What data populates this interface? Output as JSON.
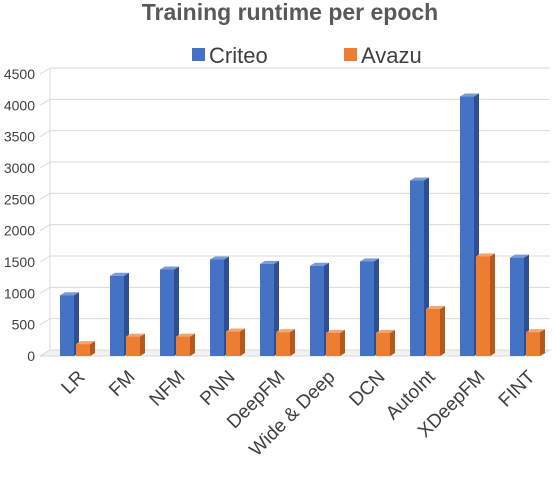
{
  "chart_data": {
    "type": "bar",
    "title": "Training runtime per epoch",
    "categories": [
      "LR",
      "FM",
      "NFM",
      "PNN",
      "DeepFM",
      "Wide & Deep",
      "DCN",
      "AutoInt",
      "XDeepFM",
      "FINT"
    ],
    "series": [
      {
        "name": "Criteo",
        "color": "#4472c4",
        "values": [
          970,
          1280,
          1380,
          1540,
          1470,
          1440,
          1510,
          2800,
          4140,
          1570
        ]
      },
      {
        "name": "Avazu",
        "color": "#ed7d31",
        "values": [
          190,
          310,
          310,
          390,
          380,
          370,
          370,
          750,
          1590,
          380
        ]
      }
    ],
    "ylim": [
      0,
      4500
    ],
    "yticks": [
      "0",
      "500",
      "1000",
      "1500",
      "2000",
      "2500",
      "3000",
      "3500",
      "4000",
      "4500"
    ],
    "grid": true,
    "legend_position": "top-center"
  }
}
